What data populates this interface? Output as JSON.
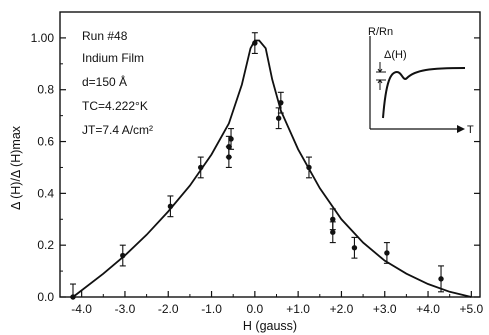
{
  "chart_data": {
    "type": "scatter",
    "xlabel": "H (gauss)",
    "ylabel": "Δ (H)/Δ (H)max",
    "xlim": [
      -4.5,
      5.2
    ],
    "ylim": [
      0,
      1.1
    ],
    "grid": false,
    "x_tick_labels": [
      "-4.0",
      "-3.0",
      "-2.0",
      "-1.0",
      "0.0",
      "+1.0",
      "+2.0",
      "+3.0",
      "+4.0",
      "+5.0"
    ],
    "x_ticks": [
      -4,
      -3,
      -2,
      -1,
      0,
      1,
      2,
      3,
      4,
      5
    ],
    "y_tick_labels": [
      "0.0",
      "0.2",
      "0.4",
      "0.6",
      "0.8",
      "1.00"
    ],
    "y_ticks": [
      0,
      0.2,
      0.4,
      0.6,
      0.8,
      1.0
    ],
    "annotations": {
      "run": "Run #48",
      "sample": "Indium Film",
      "thickness": "d=150 Å",
      "tc": "TC=4.222°K",
      "jt": "JT=7.4 A/cm²"
    },
    "inset": {
      "y_label": "R/Rn",
      "delta_label": "Δ(H)",
      "x_label": "T"
    },
    "series": [
      {
        "kind": "measured",
        "points": [
          {
            "x": -4.2,
            "y": 0.0,
            "err": 0.05
          },
          {
            "x": -3.05,
            "y": 0.16,
            "err": 0.04
          },
          {
            "x": -1.95,
            "y": 0.35,
            "err": 0.04
          },
          {
            "x": -1.25,
            "y": 0.5,
            "err": 0.04
          },
          {
            "x": -0.6,
            "y": 0.54,
            "err": 0.04
          },
          {
            "x": -0.6,
            "y": 0.58,
            "err": 0.04
          },
          {
            "x": -0.55,
            "y": 0.61,
            "err": 0.04
          },
          {
            "x": 0.0,
            "y": 0.98,
            "err": 0.04
          },
          {
            "x": 0.55,
            "y": 0.69,
            "err": 0.04
          },
          {
            "x": 0.6,
            "y": 0.75,
            "err": 0.04
          },
          {
            "x": 1.25,
            "y": 0.5,
            "err": 0.04
          },
          {
            "x": 1.8,
            "y": 0.3,
            "err": 0.04
          },
          {
            "x": 1.8,
            "y": 0.25,
            "err": 0.04
          },
          {
            "x": 2.3,
            "y": 0.19,
            "err": 0.04
          },
          {
            "x": 3.05,
            "y": 0.17,
            "err": 0.04
          },
          {
            "x": 4.3,
            "y": 0.07,
            "err": 0.05
          }
        ]
      },
      {
        "kind": "fit",
        "points": [
          {
            "x": -4.2,
            "y": 0.0
          },
          {
            "x": -3.5,
            "y": 0.09
          },
          {
            "x": -3.0,
            "y": 0.16
          },
          {
            "x": -2.5,
            "y": 0.24
          },
          {
            "x": -2.0,
            "y": 0.33
          },
          {
            "x": -1.5,
            "y": 0.43
          },
          {
            "x": -1.0,
            "y": 0.55
          },
          {
            "x": -0.6,
            "y": 0.67
          },
          {
            "x": -0.3,
            "y": 0.82
          },
          {
            "x": -0.1,
            "y": 0.96
          },
          {
            "x": 0.0,
            "y": 0.99
          },
          {
            "x": 0.1,
            "y": 0.99
          },
          {
            "x": 0.25,
            "y": 0.96
          },
          {
            "x": 0.4,
            "y": 0.84
          },
          {
            "x": 0.6,
            "y": 0.72
          },
          {
            "x": 1.0,
            "y": 0.57
          },
          {
            "x": 1.5,
            "y": 0.42
          },
          {
            "x": 2.0,
            "y": 0.3
          },
          {
            "x": 2.5,
            "y": 0.21
          },
          {
            "x": 3.0,
            "y": 0.14
          },
          {
            "x": 3.5,
            "y": 0.09
          },
          {
            "x": 4.0,
            "y": 0.05
          },
          {
            "x": 4.5,
            "y": 0.02
          },
          {
            "x": 5.0,
            "y": 0.0
          }
        ]
      }
    ]
  }
}
